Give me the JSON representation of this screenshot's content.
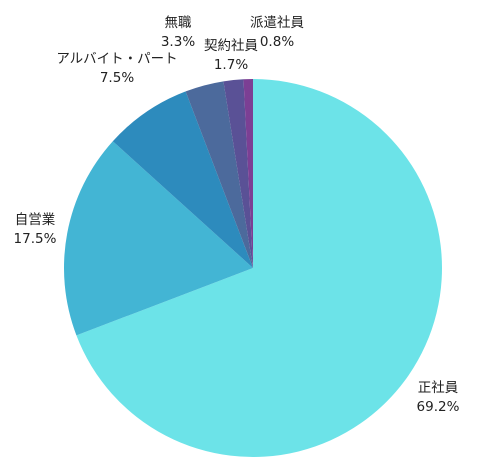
{
  "chart_data": {
    "type": "pie",
    "title": "",
    "start": "top",
    "direction": "clockwise",
    "slices": [
      {
        "label": "正社員",
        "value": 69.2,
        "value_label": "69.2%",
        "color": "#6ce3e8"
      },
      {
        "label": "自営業",
        "value": 17.5,
        "value_label": "17.5%",
        "color": "#43b5d4"
      },
      {
        "label": "アルバイト・パート",
        "value": 7.5,
        "value_label": "7.5%",
        "color": "#2d8bbd"
      },
      {
        "label": "無職",
        "value": 3.3,
        "value_label": "3.3%",
        "color": "#4c6a9c"
      },
      {
        "label": "契約社員",
        "value": 1.7,
        "value_label": "1.7%",
        "color": "#5a5196"
      },
      {
        "label": "派遣社員",
        "value": 0.8,
        "value_label": "0.8%",
        "color": "#7c3f94"
      }
    ]
  }
}
